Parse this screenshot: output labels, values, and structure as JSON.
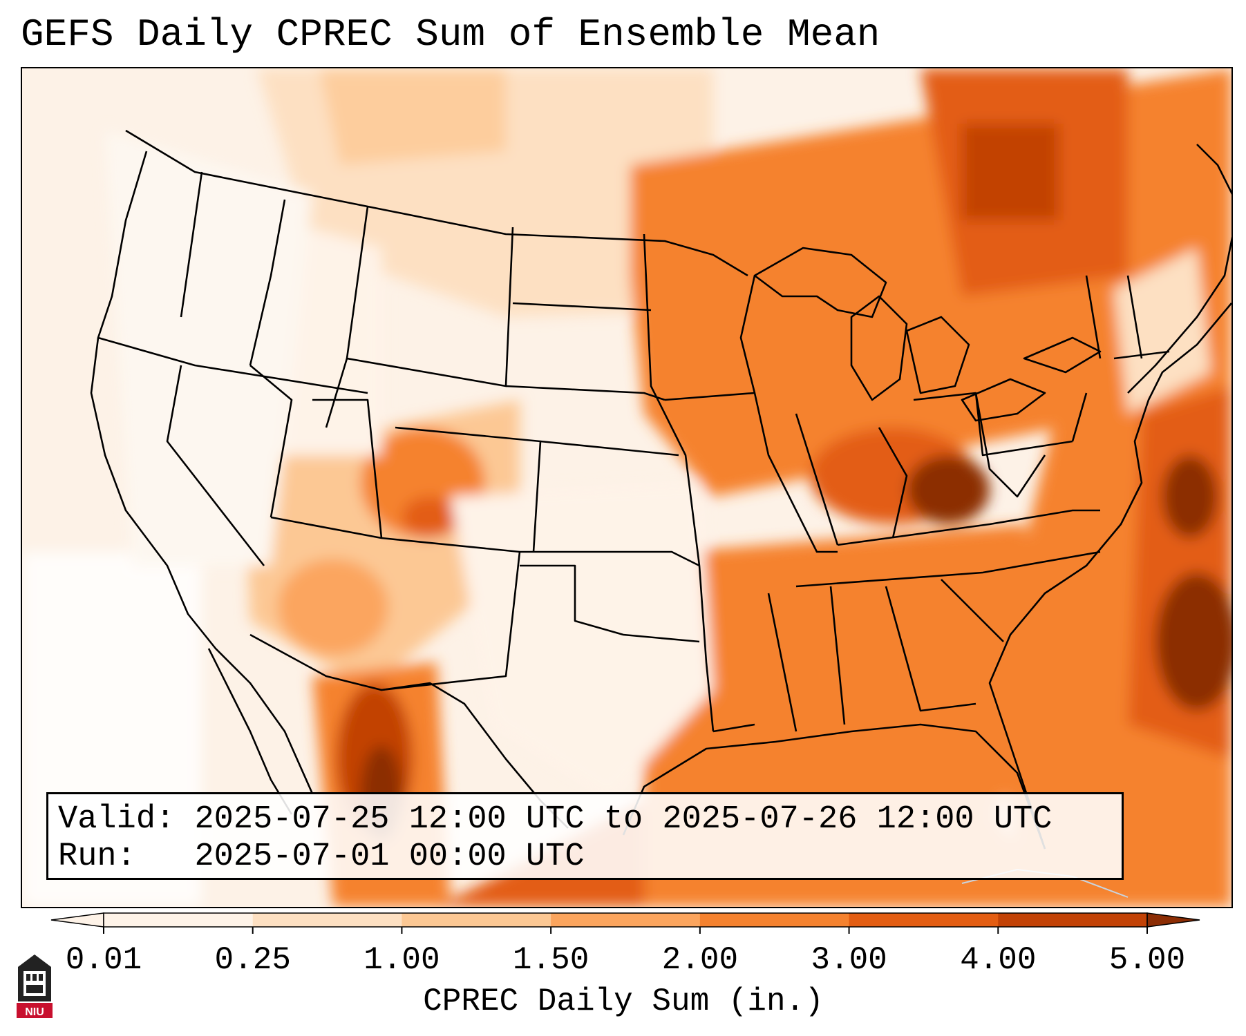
{
  "title": "GEFS Daily CPREC Sum of Ensemble Mean",
  "info": {
    "valid_label": "Valid:",
    "valid_value": "2025-07-25 12:00 UTC to 2025-07-26 12:00 UTC",
    "run_label": "Run:",
    "run_value": "2025-07-01 00:00 UTC"
  },
  "colorbar": {
    "label": "CPREC Daily Sum (in.)",
    "ticks": [
      "0.01",
      "0.25",
      "1.00",
      "1.50",
      "2.00",
      "3.00",
      "4.00",
      "5.00"
    ],
    "colors": [
      "#fef3e8",
      "#fde0c2",
      "#fcc894",
      "#fba55e",
      "#f5822f",
      "#e35d12",
      "#c24206",
      "#8c2d04"
    ],
    "extend": "both"
  },
  "map": {
    "projection": "lambert-conformal",
    "region": "CONUS",
    "variable": "CPREC",
    "palette": "oranges"
  },
  "logo": {
    "icon": "niu-logo-icon",
    "text": "NIU",
    "color": "#c8102e"
  }
}
